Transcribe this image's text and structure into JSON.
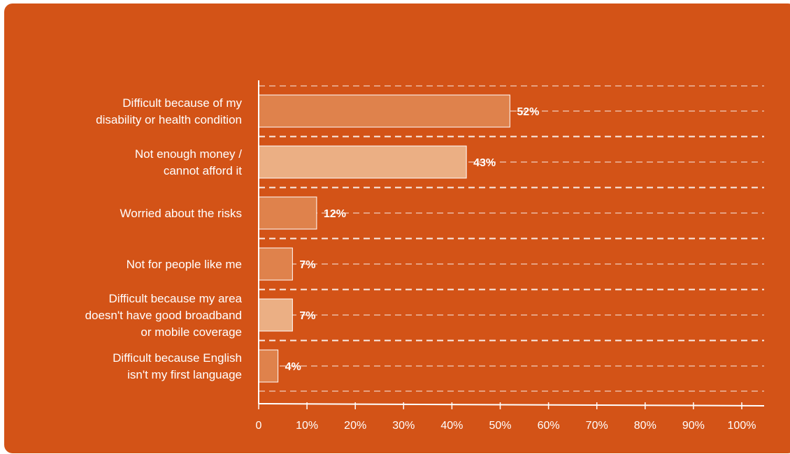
{
  "chart_data": {
    "type": "bar",
    "orientation": "horizontal",
    "categories": [
      [
        "Difficult because of my",
        "disability or health condition"
      ],
      [
        "Not enough money /",
        "cannot afford it"
      ],
      [
        "Worried about the risks"
      ],
      [
        "Not for people like me"
      ],
      [
        "Difficult because my area",
        "doesn't have good broadband",
        "or mobile coverage"
      ],
      [
        "Difficult because English",
        "isn't my first language"
      ]
    ],
    "values": [
      52,
      43,
      12,
      7,
      7,
      4
    ],
    "value_labels": [
      "52%",
      "43%",
      "12%",
      "7%",
      "7%",
      "4%"
    ],
    "xlim": [
      0,
      100
    ],
    "xticks": [
      0,
      10,
      20,
      30,
      40,
      50,
      60,
      70,
      80,
      90,
      100
    ],
    "xtick_labels": [
      "0",
      "10%",
      "20%",
      "30%",
      "40%",
      "50%",
      "60%",
      "70%",
      "80%",
      "90%",
      "100%"
    ],
    "grid": "dashed horizontal lines",
    "colors": {
      "background": "#d35317",
      "bar_dark": "#df824c",
      "bar_light": "#ebaf84",
      "bar_order": [
        "dark",
        "light",
        "dark",
        "dark",
        "light",
        "dark"
      ],
      "text": "#ffffff"
    }
  }
}
